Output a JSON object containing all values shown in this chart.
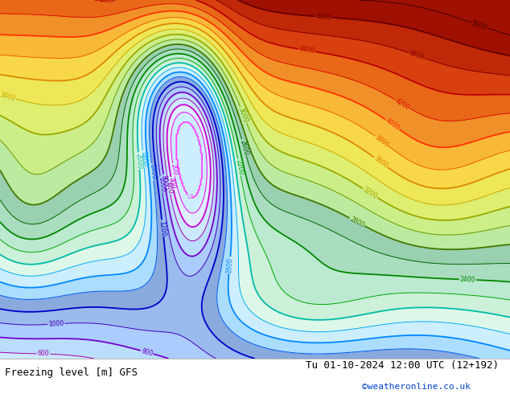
{
  "title_left": "Freezing level [m] GFS",
  "title_right": "Tu 01-10-2024 12:00 UTC (12+192)",
  "credit": "©weatheronline.co.uk",
  "fig_width": 6.34,
  "fig_height": 4.9,
  "dpi": 100,
  "footer_bg": "#ffffff",
  "footer_text_color": "#000000",
  "credit_color": "#0044cc",
  "map_bg": "#c8e6c8",
  "color_list": [
    "#cceeff",
    "#ddeeff",
    "#cce8ff",
    "#bbddff",
    "#aaccff",
    "#99bbee",
    "#88aadd",
    "#aaddff",
    "#cceeff",
    "#ddf8e8",
    "#ccf0d8",
    "#bbead0",
    "#aaddc0",
    "#99d0b0",
    "#bbeaa0",
    "#ccee88",
    "#ddee70",
    "#eee858",
    "#f8d848",
    "#f8b838",
    "#f09028",
    "#e86818",
    "#d84010",
    "#c02808",
    "#a01000",
    "#800000"
  ],
  "line_colors": {
    "0": "#ff44ff",
    "200": "#ee00ee",
    "400": "#cc00cc",
    "600": "#aa00aa",
    "800": "#7700cc",
    "1000": "#4400bb",
    "1200": "#0000cc",
    "1400": "#0055ee",
    "1600": "#0088ff",
    "1800": "#00aaff",
    "2000": "#00bbaa",
    "2200": "#00aa00",
    "2400": "#008800",
    "2600": "#006600",
    "2800": "#447700",
    "3000": "#669900",
    "3200": "#99aa00",
    "3400": "#ccaa00",
    "3600": "#dd8800",
    "3800": "#ee6600",
    "4000": "#ff3300",
    "4200": "#dd1100",
    "4400": "#bb0000",
    "4600": "#880000",
    "4800": "#660000",
    "5000": "#440000"
  }
}
